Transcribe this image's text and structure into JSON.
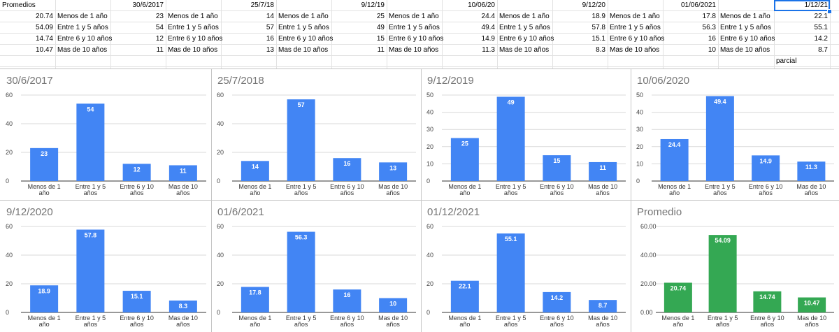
{
  "spreadsheet": {
    "header_row": [
      "Promedios",
      "30/6/2017",
      "25/7/18",
      "9/12/19",
      "10/06/20",
      "9/12/20",
      "01/06/2021",
      "1/12/21"
    ],
    "categories": [
      "Menos de 1 año",
      "Entre 1 y 5 años",
      "Entre 6 y 10 años",
      "Mas de 10 años"
    ],
    "value_columns": [
      [
        "20.74",
        "54.09",
        "14.74",
        "10.47"
      ],
      [
        "23",
        "54",
        "12",
        "11"
      ],
      [
        "14",
        "57",
        "16",
        "13"
      ],
      [
        "25",
        "49",
        "15",
        "11"
      ],
      [
        "24.4",
        "49.4",
        "14.9",
        "11.3"
      ],
      [
        "18.9",
        "57.8",
        "15.1",
        "8.3"
      ],
      [
        "17.8",
        "56.3",
        "16",
        "10"
      ],
      [
        "22.1",
        "55.1",
        "14.2",
        "8.7"
      ]
    ],
    "note": "parcial"
  },
  "chart_data": [
    {
      "type": "bar",
      "title": "30/6/2017",
      "categories": [
        "Menos de 1 año",
        "Entre 1 y 5 años",
        "Entre 6 y 10 años",
        "Mas de 10 años"
      ],
      "values": [
        23,
        54,
        12,
        11
      ],
      "labels": [
        "23",
        "54",
        "12",
        "11"
      ],
      "ylim": [
        0,
        60
      ],
      "yticks": [
        "0",
        "20",
        "40",
        "60"
      ],
      "color": "#4285f4"
    },
    {
      "type": "bar",
      "title": "25/7/2018",
      "categories": [
        "Menos de 1 año",
        "Entre 1 y 5 años",
        "Entre 6 y 10 años",
        "Mas de 10 años"
      ],
      "values": [
        14,
        57,
        16,
        13
      ],
      "labels": [
        "14",
        "57",
        "16",
        "13"
      ],
      "ylim": [
        0,
        60
      ],
      "yticks": [
        "0",
        "20",
        "40",
        "60"
      ],
      "color": "#4285f4"
    },
    {
      "type": "bar",
      "title": "9/12/2019",
      "categories": [
        "Menos de 1 año",
        "Entre 1 y 5 años",
        "Entre 6 y 10 años",
        "Mas de 10 años"
      ],
      "values": [
        25,
        49,
        15,
        11
      ],
      "labels": [
        "25",
        "49",
        "15",
        "11"
      ],
      "ylim": [
        0,
        50
      ],
      "yticks": [
        "0",
        "10",
        "20",
        "30",
        "40",
        "50"
      ],
      "color": "#4285f4"
    },
    {
      "type": "bar",
      "title": "10/06/2020",
      "categories": [
        "Menos de 1 año",
        "Entre 1 y 5 años",
        "Entre 6 y 10 años",
        "Mas de 10 años"
      ],
      "values": [
        24.4,
        49.4,
        14.9,
        11.3
      ],
      "labels": [
        "24.4",
        "49.4",
        "14.9",
        "11.3"
      ],
      "ylim": [
        0,
        50
      ],
      "yticks": [
        "0",
        "10",
        "20",
        "30",
        "40",
        "50"
      ],
      "color": "#4285f4"
    },
    {
      "type": "bar",
      "title": "9/12/2020",
      "categories": [
        "Menos de 1 año",
        "Entre 1 y 5 años",
        "Entre 6 y 10 años",
        "Mas de 10 años"
      ],
      "values": [
        18.9,
        57.8,
        15.1,
        8.3
      ],
      "labels": [
        "18.9",
        "57.8",
        "15.1",
        "8.3"
      ],
      "ylim": [
        0,
        60
      ],
      "yticks": [
        "0",
        "20",
        "40",
        "60"
      ],
      "color": "#4285f4"
    },
    {
      "type": "bar",
      "title": "01/6/2021",
      "categories": [
        "Menos de 1 año",
        "Entre 1 y 5 años",
        "Entre 6 y 10 años",
        "Mas de 10 años"
      ],
      "values": [
        17.8,
        56.3,
        16,
        10
      ],
      "labels": [
        "17.8",
        "56.3",
        "16",
        "10"
      ],
      "ylim": [
        0,
        60
      ],
      "yticks": [
        "0",
        "20",
        "40",
        "60"
      ],
      "color": "#4285f4"
    },
    {
      "type": "bar",
      "title": "01/12/2021",
      "categories": [
        "Menos de 1 año",
        "Entre 1 y 5 años",
        "Entre 6 y 10 años",
        "Mas de 10 años"
      ],
      "values": [
        22.1,
        55.1,
        14.2,
        8.7
      ],
      "labels": [
        "22.1",
        "55.1",
        "14.2",
        "8.7"
      ],
      "ylim": [
        0,
        60
      ],
      "yticks": [
        "0",
        "20",
        "40",
        "60"
      ],
      "color": "#4285f4"
    },
    {
      "type": "bar",
      "title": "Promedio",
      "categories": [
        "Menos de 1 año",
        "Entre 1 y 5 años",
        "Entre 6 y 10 años",
        "Mas de 10 años"
      ],
      "values": [
        20.74,
        54.09,
        14.74,
        10.47
      ],
      "labels": [
        "20.74",
        "54.09",
        "14.74",
        "10.47"
      ],
      "ylim": [
        0,
        60
      ],
      "yticks": [
        "0.00",
        "20.00",
        "40.00",
        "60.00"
      ],
      "color": "#34a853"
    }
  ],
  "category_label_lines": [
    [
      "Menos de 1",
      "año"
    ],
    [
      "Entre 1 y 5",
      "años"
    ],
    [
      "Entre 6 y 10",
      "años"
    ],
    [
      "Mas de 10",
      "años"
    ]
  ]
}
